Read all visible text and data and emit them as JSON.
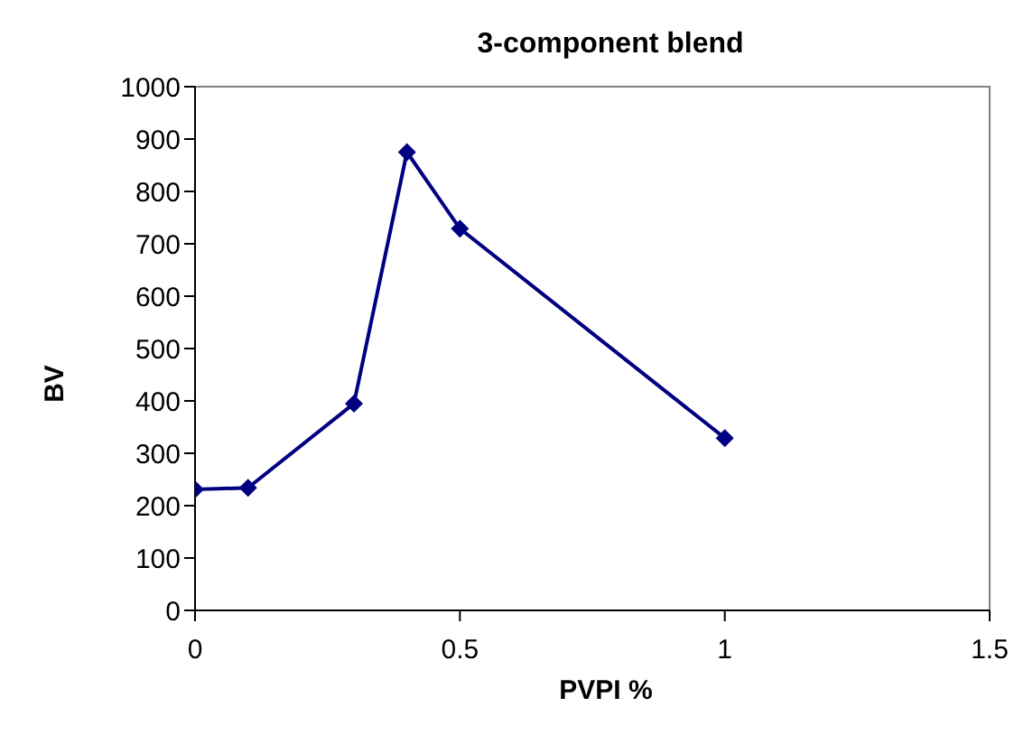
{
  "chart_data": {
    "type": "line",
    "title": "3-component blend",
    "xlabel": "PVPI %",
    "ylabel": "BV",
    "x": [
      0,
      0.1,
      0.3,
      0.4,
      0.5,
      1
    ],
    "series": [
      {
        "color": "#000080",
        "values": [
          231,
          234,
          395,
          875,
          729,
          329
        ]
      }
    ],
    "xlim": [
      0,
      1.5
    ],
    "xticks": [
      0,
      0.5,
      1,
      1.5
    ],
    "ylim": [
      0,
      1000
    ],
    "yticks": [
      0,
      100,
      200,
      300,
      400,
      500,
      600,
      700,
      800,
      900,
      1000
    ],
    "grid": false,
    "marker": "diamond",
    "line_style": "solid"
  }
}
